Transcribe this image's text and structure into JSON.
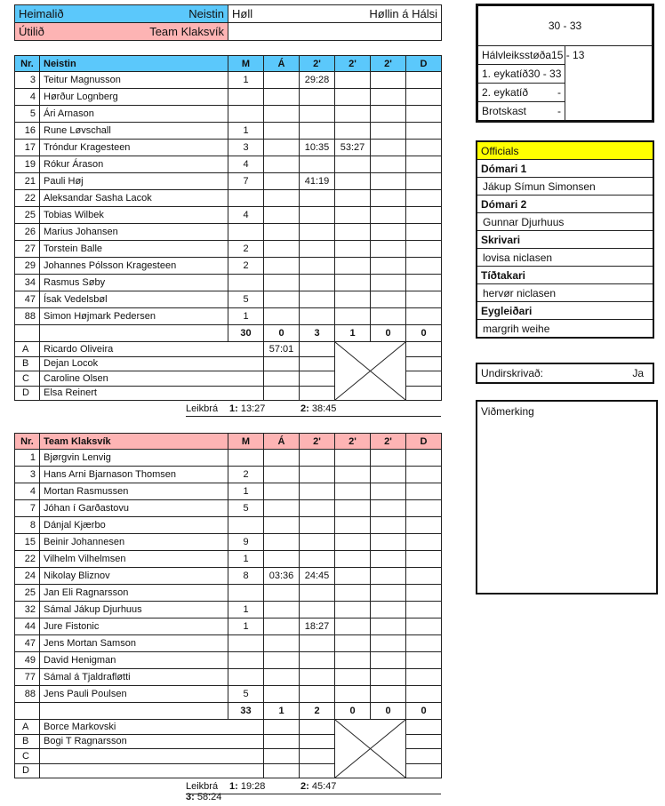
{
  "header": {
    "home_label": "Heimalið",
    "home_team": "Neistin",
    "away_label": "Útilið",
    "away_team": "Team Klaksvík",
    "venue_label": "Høll",
    "venue": "Høllin á Hálsi"
  },
  "columns": [
    "Nr.",
    "M",
    "Á",
    "2'",
    "2'",
    "2'",
    "D"
  ],
  "home": {
    "team": "Neistin",
    "players": [
      {
        "nr": "3",
        "name": "Teitur Magnusson",
        "m": "1",
        "a": "",
        "t1": "29:28",
        "t2": "",
        "t3": "",
        "d": ""
      },
      {
        "nr": "4",
        "name": "Hørður Lognberg",
        "m": "",
        "a": "",
        "t1": "",
        "t2": "",
        "t3": "",
        "d": ""
      },
      {
        "nr": "5",
        "name": "Ári Arnason",
        "m": "",
        "a": "",
        "t1": "",
        "t2": "",
        "t3": "",
        "d": ""
      },
      {
        "nr": "16",
        "name": "Rune Løvschall",
        "m": "1",
        "a": "",
        "t1": "",
        "t2": "",
        "t3": "",
        "d": ""
      },
      {
        "nr": "17",
        "name": "Tróndur Kragesteen",
        "m": "3",
        "a": "",
        "t1": "10:35",
        "t2": "53:27",
        "t3": "",
        "d": ""
      },
      {
        "nr": "19",
        "name": "Rókur Árason",
        "m": "4",
        "a": "",
        "t1": "",
        "t2": "",
        "t3": "",
        "d": ""
      },
      {
        "nr": "21",
        "name": "Pauli Høj",
        "m": "7",
        "a": "",
        "t1": "41:19",
        "t2": "",
        "t3": "",
        "d": ""
      },
      {
        "nr": "22",
        "name": "Aleksandar Sasha Lacok",
        "m": "",
        "a": "",
        "t1": "",
        "t2": "",
        "t3": "",
        "d": ""
      },
      {
        "nr": "25",
        "name": "Tobias Wilbek",
        "m": "4",
        "a": "",
        "t1": "",
        "t2": "",
        "t3": "",
        "d": ""
      },
      {
        "nr": "26",
        "name": "Marius Johansen",
        "m": "",
        "a": "",
        "t1": "",
        "t2": "",
        "t3": "",
        "d": ""
      },
      {
        "nr": "27",
        "name": "Torstein Balle",
        "m": "2",
        "a": "",
        "t1": "",
        "t2": "",
        "t3": "",
        "d": ""
      },
      {
        "nr": "29",
        "name": "Johannes Pólsson Kragesteen",
        "m": "2",
        "a": "",
        "t1": "",
        "t2": "",
        "t3": "",
        "d": ""
      },
      {
        "nr": "34",
        "name": "Rasmus Søby",
        "m": "",
        "a": "",
        "t1": "",
        "t2": "",
        "t3": "",
        "d": ""
      },
      {
        "nr": "47",
        "name": "Ísak Vedelsbøl",
        "m": "5",
        "a": "",
        "t1": "",
        "t2": "",
        "t3": "",
        "d": ""
      },
      {
        "nr": "88",
        "name": "Simon Højmark Pedersen",
        "m": "1",
        "a": "",
        "t1": "",
        "t2": "",
        "t3": "",
        "d": ""
      }
    ],
    "totals": {
      "m": "30",
      "a": "0",
      "t1": "3",
      "t2": "1",
      "t3": "0",
      "d": "0"
    },
    "officials": [
      {
        "nr": "A",
        "name": "Ricardo Oliveira",
        "a": "57:01",
        "t1": "",
        "d": ""
      },
      {
        "nr": "B",
        "name": "Dejan Locok",
        "a": "",
        "t1": "",
        "d": ""
      },
      {
        "nr": "C",
        "name": "Caroline Olsen",
        "a": "",
        "t1": "",
        "d": ""
      },
      {
        "nr": "D",
        "name": "Elsa Reinert",
        "a": "",
        "t1": "",
        "d": ""
      }
    ],
    "timeouts_label": "Leikbrá",
    "timeouts": [
      {
        "n": "1:",
        "t": "13:27"
      },
      {
        "n": "2:",
        "t": "38:45"
      }
    ]
  },
  "away": {
    "team": "Team Klaksvík",
    "players": [
      {
        "nr": "1",
        "name": "Bjørgvin Lenvig",
        "m": "",
        "a": "",
        "t1": "",
        "t2": "",
        "t3": "",
        "d": ""
      },
      {
        "nr": "3",
        "name": "Hans Arni Bjarnason Thomsen",
        "m": "2",
        "a": "",
        "t1": "",
        "t2": "",
        "t3": "",
        "d": ""
      },
      {
        "nr": "4",
        "name": "Mortan Rasmussen",
        "m": "1",
        "a": "",
        "t1": "",
        "t2": "",
        "t3": "",
        "d": ""
      },
      {
        "nr": "7",
        "name": "Jóhan í Garðastovu",
        "m": "5",
        "a": "",
        "t1": "",
        "t2": "",
        "t3": "",
        "d": ""
      },
      {
        "nr": "8",
        "name": "Dánjal Kjærbo",
        "m": "",
        "a": "",
        "t1": "",
        "t2": "",
        "t3": "",
        "d": ""
      },
      {
        "nr": "15",
        "name": "Beinir Johannesen",
        "m": "9",
        "a": "",
        "t1": "",
        "t2": "",
        "t3": "",
        "d": ""
      },
      {
        "nr": "22",
        "name": "Vilhelm Vilhelmsen",
        "m": "1",
        "a": "",
        "t1": "",
        "t2": "",
        "t3": "",
        "d": ""
      },
      {
        "nr": "24",
        "name": "Nikolay Bliznov",
        "m": "8",
        "a": "03:36",
        "t1": "24:45",
        "t2": "",
        "t3": "",
        "d": ""
      },
      {
        "nr": "25",
        "name": "Jan Eli Ragnarsson",
        "m": "",
        "a": "",
        "t1": "",
        "t2": "",
        "t3": "",
        "d": ""
      },
      {
        "nr": "32",
        "name": "Sámal Jákup Djurhuus",
        "m": "1",
        "a": "",
        "t1": "",
        "t2": "",
        "t3": "",
        "d": ""
      },
      {
        "nr": "44",
        "name": "Jure Fistonic",
        "m": "1",
        "a": "",
        "t1": "18:27",
        "t2": "",
        "t3": "",
        "d": ""
      },
      {
        "nr": "47",
        "name": "Jens Mortan Samson",
        "m": "",
        "a": "",
        "t1": "",
        "t2": "",
        "t3": "",
        "d": ""
      },
      {
        "nr": "49",
        "name": "David Henigman",
        "m": "",
        "a": "",
        "t1": "",
        "t2": "",
        "t3": "",
        "d": ""
      },
      {
        "nr": "77",
        "name": "Sámal á Tjaldrafløtti",
        "m": "",
        "a": "",
        "t1": "",
        "t2": "",
        "t3": "",
        "d": ""
      },
      {
        "nr": "88",
        "name": "Jens Pauli Poulsen",
        "m": "5",
        "a": "",
        "t1": "",
        "t2": "",
        "t3": "",
        "d": ""
      }
    ],
    "totals": {
      "m": "33",
      "a": "1",
      "t1": "2",
      "t2": "0",
      "t3": "0",
      "d": "0"
    },
    "officials": [
      {
        "nr": "A",
        "name": "Borce Markovski",
        "a": "",
        "t1": "",
        "d": ""
      },
      {
        "nr": "B",
        "name": "Bogi T Ragnarsson",
        "a": "",
        "t1": "",
        "d": ""
      },
      {
        "nr": "C",
        "name": "",
        "a": "",
        "t1": "",
        "d": ""
      },
      {
        "nr": "D",
        "name": "",
        "a": "",
        "t1": "",
        "d": ""
      }
    ],
    "timeouts_label": "Leikbrá",
    "timeouts": [
      {
        "n": "1:",
        "t": "19:28"
      },
      {
        "n": "2:",
        "t": "45:47"
      },
      {
        "n": "3:",
        "t": "58:24"
      }
    ]
  },
  "score": {
    "final": "30 - 33",
    "rows": [
      {
        "label": "Hálvleiksstøða",
        "value": "15 - 13"
      },
      {
        "label": "1. eykatíð",
        "value": "30 - 33"
      },
      {
        "label": "2. eykatíð",
        "value": "-"
      },
      {
        "label": "Brotskast",
        "value": "-"
      }
    ]
  },
  "officials": {
    "title": "Officials",
    "items": [
      {
        "role": "Dómari 1",
        "name": "Jákup Símun Simonsen"
      },
      {
        "role": "Dómari 2",
        "name": "Gunnar Djurhuus"
      },
      {
        "role": "Skrivari",
        "name": "lovisa niclasen"
      },
      {
        "role": "Tíðtakari",
        "name": "hervør niclasen"
      },
      {
        "role": "Eygleiðari",
        "name": "margrih weihe"
      }
    ]
  },
  "signed": {
    "label": "Undirskrivað:",
    "value": "Ja"
  },
  "remarks": {
    "label": "Viðmerking",
    "text": ""
  },
  "colors": {
    "home": "#5bc8fb",
    "away": "#fdb4b4",
    "officials": "#ffff00"
  }
}
